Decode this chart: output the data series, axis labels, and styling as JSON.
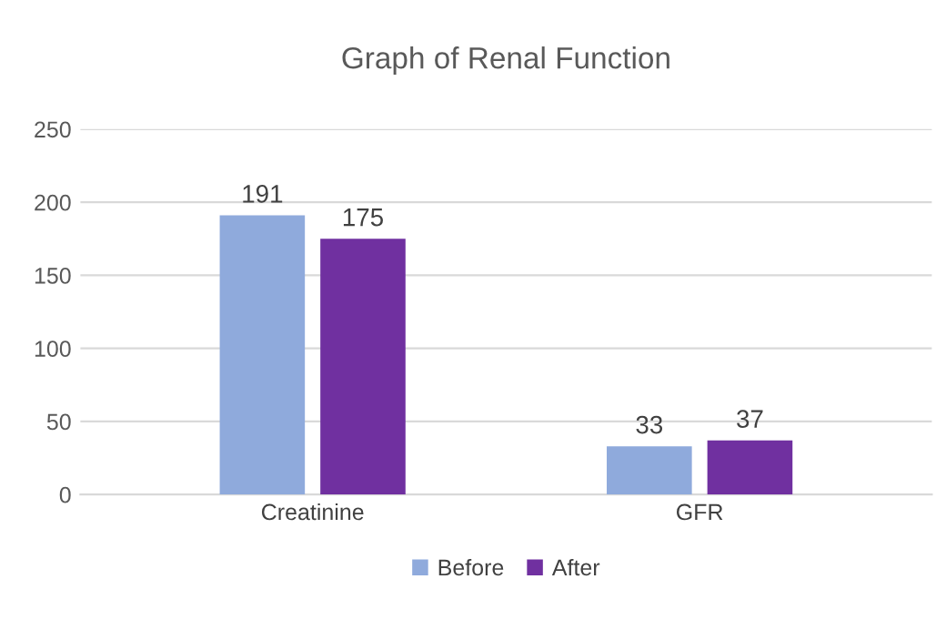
{
  "chart_data": {
    "type": "bar",
    "title": "Graph of Renal Function",
    "categories": [
      "Creatinine",
      "GFR"
    ],
    "series": [
      {
        "name": "Before",
        "color": "#8faadc",
        "values": [
          191,
          33
        ]
      },
      {
        "name": "After",
        "color": "#7030a0",
        "values": [
          175,
          37
        ]
      }
    ],
    "ylim": [
      0,
      250
    ],
    "yticks": [
      0,
      50,
      100,
      150,
      200,
      250
    ],
    "grid": "y",
    "legend": "bottom",
    "data_labels": true
  }
}
